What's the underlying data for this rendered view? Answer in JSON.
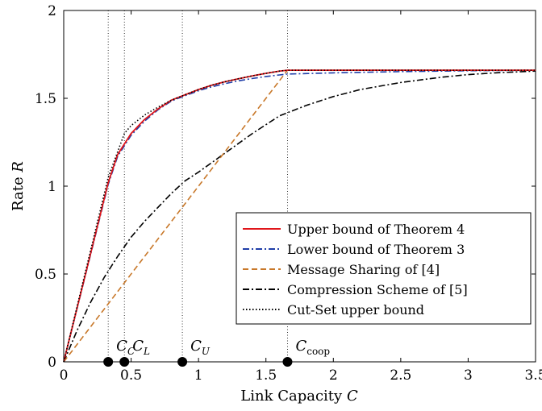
{
  "chart_data": {
    "type": "line",
    "title": "",
    "xlabel": "Link Capacity",
    "xlabel_var": "C",
    "ylabel": "Rate",
    "ylabel_var": "R",
    "xlim": [
      0,
      3.5
    ],
    "ylim": [
      0,
      2
    ],
    "xticks": [
      0,
      0.5,
      1,
      1.5,
      2,
      2.5,
      3,
      3.5
    ],
    "xtick_labels": [
      "0",
      "0.5",
      "1",
      "1.5",
      "2",
      "2.5",
      "3",
      "3.5"
    ],
    "yticks": [
      0,
      0.5,
      1,
      1.5,
      2
    ],
    "ytick_labels": [
      "0",
      "0.5",
      "1",
      "1.5",
      "2"
    ],
    "grid": false,
    "legend_position": "lower-right",
    "series": [
      {
        "name": "Upper bound of Theorem 4",
        "color": "#e0161b",
        "dash": "solid",
        "x": [
          0,
          0.33,
          0.4,
          0.5,
          0.6,
          0.7,
          0.8,
          0.9,
          1.0,
          1.1,
          1.2,
          1.3,
          1.4,
          1.5,
          1.6,
          1.66,
          2.0,
          2.5,
          3.0,
          3.5
        ],
        "y": [
          0,
          1.02,
          1.18,
          1.3,
          1.38,
          1.44,
          1.49,
          1.52,
          1.55,
          1.575,
          1.595,
          1.612,
          1.628,
          1.642,
          1.655,
          1.66,
          1.66,
          1.66,
          1.66,
          1.66
        ]
      },
      {
        "name": "Lower bound of Theorem 3",
        "color": "#1f3ea8",
        "dash": "dashdot",
        "x": [
          0,
          0.33,
          0.4,
          0.5,
          0.6,
          0.7,
          0.8,
          0.9,
          1.0,
          1.1,
          1.2,
          1.3,
          1.4,
          1.5,
          1.6,
          1.66,
          2.0,
          2.5,
          3.0,
          3.5
        ],
        "y": [
          0,
          1.01,
          1.17,
          1.29,
          1.37,
          1.435,
          1.485,
          1.515,
          1.543,
          1.566,
          1.584,
          1.6,
          1.613,
          1.624,
          1.633,
          1.638,
          1.645,
          1.652,
          1.657,
          1.66
        ]
      },
      {
        "name": "Message Sharing of [4]",
        "color": "#c8782a",
        "dash": "dashed",
        "x": [
          0,
          1.66,
          3.5
        ],
        "y": [
          0,
          1.66,
          1.66
        ]
      },
      {
        "name": "Compression Scheme of [5]",
        "color": "#000000",
        "dash": "dashdot",
        "x": [
          0,
          0.1,
          0.2,
          0.3,
          0.4,
          0.5,
          0.6,
          0.7,
          0.8,
          0.9,
          1.0,
          1.2,
          1.4,
          1.6,
          1.8,
          2.0,
          2.2,
          2.5,
          2.8,
          3.0,
          3.2,
          3.5
        ],
        "y": [
          0,
          0.18,
          0.34,
          0.48,
          0.6,
          0.71,
          0.8,
          0.88,
          0.96,
          1.03,
          1.08,
          1.19,
          1.3,
          1.4,
          1.46,
          1.51,
          1.55,
          1.59,
          1.62,
          1.635,
          1.645,
          1.655
        ]
      },
      {
        "name": "Cut-Set upper bound",
        "color": "#000000",
        "dash": "dotted",
        "x": [
          0,
          0.33,
          0.45,
          0.5,
          0.6,
          0.7,
          0.8,
          0.9,
          1.0,
          1.1,
          1.2,
          1.3,
          1.4,
          1.5,
          1.6,
          1.66,
          2.0,
          2.5,
          3.0,
          3.5
        ],
        "y": [
          0,
          1.05,
          1.3,
          1.345,
          1.405,
          1.45,
          1.49,
          1.52,
          1.55,
          1.575,
          1.595,
          1.612,
          1.628,
          1.642,
          1.655,
          1.66,
          1.66,
          1.66,
          1.66,
          1.66
        ]
      }
    ],
    "vertical_lines": [
      0.33,
      0.45,
      0.88,
      1.66
    ],
    "markers": [
      {
        "x": 0.33,
        "label": "C",
        "sub": "C"
      },
      {
        "x": 0.45,
        "label": "C",
        "sub": "L"
      },
      {
        "x": 0.88,
        "label": "C",
        "sub": "U"
      },
      {
        "x": 1.66,
        "label": "C",
        "sub": "coop"
      }
    ]
  }
}
